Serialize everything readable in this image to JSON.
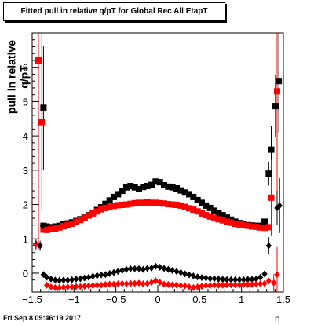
{
  "chart_data": {
    "type": "scatter",
    "title": "Fitted pull in relative q/pT for Global Rec All EtapT",
    "xlabel": "η",
    "ylabel": "pull in relative q/pT",
    "xlim": [
      -1.5,
      1.5
    ],
    "ylim": [
      -0.55,
      7.0
    ],
    "x_ticks": [
      -1.5,
      -1,
      -0.5,
      0,
      0.5,
      1,
      1.5
    ],
    "x_tick_labels": [
      "−1.5",
      "−1",
      "−0.5",
      "0",
      "0.5",
      "1",
      "1.5"
    ],
    "y_ticks": [
      0,
      1,
      2,
      3,
      4,
      5,
      6
    ],
    "y_tick_labels": [
      "0",
      "1",
      "2",
      "3",
      "4",
      "5",
      "6"
    ],
    "grid": false,
    "legend": false,
    "series": [
      {
        "marker": "square",
        "color": "#000000",
        "points": [
          [
            -1.365,
            4.82
          ],
          [
            -1.365,
            1.38
          ],
          [
            -1.325,
            1.36
          ],
          [
            -1.275,
            1.34
          ],
          [
            -1.225,
            1.36
          ],
          [
            -1.175,
            1.38
          ],
          [
            -1.125,
            1.42
          ],
          [
            -1.075,
            1.45
          ],
          [
            -1.025,
            1.48
          ],
          [
            -0.975,
            1.52
          ],
          [
            -0.925,
            1.57
          ],
          [
            -0.875,
            1.62
          ],
          [
            -0.825,
            1.69
          ],
          [
            -0.775,
            1.76
          ],
          [
            -0.725,
            1.84
          ],
          [
            -0.675,
            1.92
          ],
          [
            -0.625,
            2.02
          ],
          [
            -0.575,
            2.12
          ],
          [
            -0.525,
            2.22
          ],
          [
            -0.475,
            2.3
          ],
          [
            -0.425,
            2.4
          ],
          [
            -0.375,
            2.5
          ],
          [
            -0.325,
            2.54
          ],
          [
            -0.275,
            2.5
          ],
          [
            -0.225,
            2.45
          ],
          [
            -0.175,
            2.51
          ],
          [
            -0.125,
            2.54
          ],
          [
            -0.075,
            2.57
          ],
          [
            -0.025,
            2.67
          ],
          [
            0.025,
            2.65
          ],
          [
            0.075,
            2.56
          ],
          [
            0.125,
            2.52
          ],
          [
            0.175,
            2.5
          ],
          [
            0.225,
            2.47
          ],
          [
            0.275,
            2.41
          ],
          [
            0.325,
            2.35
          ],
          [
            0.375,
            2.3
          ],
          [
            0.425,
            2.22
          ],
          [
            0.475,
            2.13
          ],
          [
            0.525,
            2.05
          ],
          [
            0.575,
            1.97
          ],
          [
            0.625,
            1.9
          ],
          [
            0.675,
            1.82
          ],
          [
            0.725,
            1.75
          ],
          [
            0.775,
            1.69
          ],
          [
            0.825,
            1.62
          ],
          [
            0.875,
            1.56
          ],
          [
            0.925,
            1.5
          ],
          [
            0.975,
            1.46
          ],
          [
            1.025,
            1.43
          ],
          [
            1.075,
            1.4
          ],
          [
            1.125,
            1.39
          ],
          [
            1.175,
            1.38
          ],
          [
            1.225,
            1.38
          ],
          [
            1.275,
            1.5
          ],
          [
            1.325,
            2.9
          ],
          [
            1.355,
            3.6
          ],
          [
            1.405,
            4.87
          ],
          [
            1.445,
            5.6
          ]
        ],
        "errors": [
          [
            -1.365,
            1.8
          ],
          [
            1.325,
            0.35
          ],
          [
            1.355,
            0.7
          ],
          [
            1.405,
            0.9
          ],
          [
            1.445,
            1.5
          ]
        ]
      },
      {
        "marker": "square",
        "color": "#ff0000",
        "points": [
          [
            -1.425,
            6.2
          ],
          [
            -1.385,
            4.4
          ],
          [
            -1.365,
            1.27
          ],
          [
            -1.325,
            1.26
          ],
          [
            -1.275,
            1.28
          ],
          [
            -1.225,
            1.3
          ],
          [
            -1.175,
            1.33
          ],
          [
            -1.125,
            1.37
          ],
          [
            -1.075,
            1.4
          ],
          [
            -1.025,
            1.44
          ],
          [
            -0.975,
            1.5
          ],
          [
            -0.925,
            1.55
          ],
          [
            -0.875,
            1.61
          ],
          [
            -0.825,
            1.68
          ],
          [
            -0.775,
            1.74
          ],
          [
            -0.725,
            1.8
          ],
          [
            -0.675,
            1.86
          ],
          [
            -0.625,
            1.9
          ],
          [
            -0.575,
            1.93
          ],
          [
            -0.525,
            1.96
          ],
          [
            -0.475,
            1.98
          ],
          [
            -0.425,
            1.99
          ],
          [
            -0.375,
            2.0
          ],
          [
            -0.325,
            2.02
          ],
          [
            -0.275,
            2.04
          ],
          [
            -0.225,
            2.05
          ],
          [
            -0.175,
            2.05
          ],
          [
            -0.125,
            2.06
          ],
          [
            -0.075,
            2.05
          ],
          [
            -0.025,
            2.05
          ],
          [
            0.025,
            2.04
          ],
          [
            0.075,
            2.03
          ],
          [
            0.125,
            2.01
          ],
          [
            0.175,
            2.0
          ],
          [
            0.225,
            1.99
          ],
          [
            0.275,
            1.97
          ],
          [
            0.325,
            1.93
          ],
          [
            0.375,
            1.89
          ],
          [
            0.425,
            1.85
          ],
          [
            0.475,
            1.8
          ],
          [
            0.525,
            1.74
          ],
          [
            0.575,
            1.69
          ],
          [
            0.625,
            1.65
          ],
          [
            0.675,
            1.61
          ],
          [
            0.725,
            1.57
          ],
          [
            0.775,
            1.54
          ],
          [
            0.825,
            1.5
          ],
          [
            0.875,
            1.47
          ],
          [
            0.925,
            1.44
          ],
          [
            0.975,
            1.42
          ],
          [
            1.025,
            1.4
          ],
          [
            1.075,
            1.38
          ],
          [
            1.125,
            1.36
          ],
          [
            1.175,
            1.35
          ],
          [
            1.225,
            1.33
          ],
          [
            1.275,
            1.32
          ],
          [
            1.325,
            1.34
          ],
          [
            1.355,
            2.2
          ],
          [
            1.425,
            5.3
          ]
        ],
        "errors": [
          [
            -1.425,
            5.5
          ],
          [
            -1.385,
            2.6
          ],
          [
            1.355,
            1.1
          ],
          [
            1.425,
            3.5
          ]
        ]
      },
      {
        "marker": "diamond",
        "color": "#000000",
        "points": [
          [
            -1.455,
            0.85
          ],
          [
            -1.405,
            0.8
          ],
          [
            -1.375,
            1.38
          ],
          [
            -1.365,
            -0.04
          ],
          [
            -1.325,
            -0.12
          ],
          [
            -1.275,
            -0.17
          ],
          [
            -1.225,
            -0.2
          ],
          [
            -1.175,
            -0.21
          ],
          [
            -1.125,
            -0.2
          ],
          [
            -1.075,
            -0.2
          ],
          [
            -1.025,
            -0.19
          ],
          [
            -0.975,
            -0.17
          ],
          [
            -0.925,
            -0.16
          ],
          [
            -0.875,
            -0.14
          ],
          [
            -0.825,
            -0.12
          ],
          [
            -0.775,
            -0.09
          ],
          [
            -0.725,
            -0.07
          ],
          [
            -0.675,
            -0.05
          ],
          [
            -0.625,
            -0.04
          ],
          [
            -0.575,
            -0.01
          ],
          [
            -0.525,
            0.02
          ],
          [
            -0.475,
            0.05
          ],
          [
            -0.425,
            0.08
          ],
          [
            -0.375,
            0.11
          ],
          [
            -0.325,
            0.13
          ],
          [
            -0.275,
            0.13
          ],
          [
            -0.225,
            0.13
          ],
          [
            -0.175,
            0.11
          ],
          [
            -0.125,
            0.14
          ],
          [
            -0.075,
            0.15
          ],
          [
            -0.025,
            0.2
          ],
          [
            0.025,
            0.17
          ],
          [
            0.075,
            0.14
          ],
          [
            0.125,
            0.11
          ],
          [
            0.175,
            0.08
          ],
          [
            0.225,
            0.05
          ],
          [
            0.275,
            0.02
          ],
          [
            0.325,
            -0.02
          ],
          [
            0.375,
            -0.05
          ],
          [
            0.425,
            -0.08
          ],
          [
            0.475,
            -0.11
          ],
          [
            0.525,
            -0.13
          ],
          [
            0.575,
            -0.14
          ],
          [
            0.625,
            -0.16
          ],
          [
            0.675,
            -0.16
          ],
          [
            0.725,
            -0.17
          ],
          [
            0.775,
            -0.18
          ],
          [
            0.825,
            -0.19
          ],
          [
            0.875,
            -0.19
          ],
          [
            0.925,
            -0.19
          ],
          [
            0.975,
            -0.19
          ],
          [
            1.025,
            -0.19
          ],
          [
            1.075,
            -0.18
          ],
          [
            1.125,
            -0.18
          ],
          [
            1.175,
            -0.17
          ],
          [
            1.225,
            -0.12
          ],
          [
            1.275,
            -0.02
          ],
          [
            1.325,
            0.8
          ],
          [
            1.425,
            1.9
          ],
          [
            1.455,
            1.97
          ]
        ],
        "errors": [
          [
            -1.455,
            0.15
          ],
          [
            -1.405,
            0.15
          ],
          [
            1.325,
            0.25
          ],
          [
            1.425,
            0.5
          ],
          [
            1.455,
            0.8
          ]
        ]
      },
      {
        "marker": "diamond",
        "color": "#ff0000",
        "points": [
          [
            -1.455,
            0.82
          ],
          [
            -1.325,
            -0.35
          ],
          [
            -1.275,
            -0.4
          ],
          [
            -1.225,
            -0.42
          ],
          [
            -1.175,
            -0.42
          ],
          [
            -1.125,
            -0.41
          ],
          [
            -1.075,
            -0.4
          ],
          [
            -1.025,
            -0.4
          ],
          [
            -0.975,
            -0.39
          ],
          [
            -0.925,
            -0.39
          ],
          [
            -0.875,
            -0.38
          ],
          [
            -0.825,
            -0.37
          ],
          [
            -0.775,
            -0.36
          ],
          [
            -0.725,
            -0.35
          ],
          [
            -0.675,
            -0.35
          ],
          [
            -0.625,
            -0.33
          ],
          [
            -0.575,
            -0.32
          ],
          [
            -0.525,
            -0.32
          ],
          [
            -0.475,
            -0.31
          ],
          [
            -0.425,
            -0.3
          ],
          [
            -0.375,
            -0.31
          ],
          [
            -0.325,
            -0.3
          ],
          [
            -0.275,
            -0.3
          ],
          [
            -0.225,
            -0.29
          ],
          [
            -0.175,
            -0.31
          ],
          [
            -0.125,
            -0.3
          ],
          [
            -0.075,
            -0.27
          ],
          [
            -0.025,
            -0.22
          ],
          [
            0.025,
            -0.27
          ],
          [
            0.075,
            -0.32
          ],
          [
            0.125,
            -0.33
          ],
          [
            0.175,
            -0.34
          ],
          [
            0.225,
            -0.35
          ],
          [
            0.275,
            -0.36
          ],
          [
            0.325,
            -0.37
          ],
          [
            0.375,
            -0.4
          ],
          [
            0.425,
            -0.42
          ],
          [
            0.475,
            -0.4
          ],
          [
            0.525,
            -0.38
          ],
          [
            0.575,
            -0.36
          ],
          [
            0.625,
            -0.36
          ],
          [
            0.675,
            -0.35
          ],
          [
            0.725,
            -0.35
          ],
          [
            0.775,
            -0.35
          ],
          [
            0.825,
            -0.34
          ],
          [
            0.875,
            -0.34
          ],
          [
            0.925,
            -0.34
          ],
          [
            0.975,
            -0.34
          ],
          [
            1.025,
            -0.33
          ],
          [
            1.075,
            -0.33
          ],
          [
            1.125,
            -0.33
          ],
          [
            1.175,
            -0.32
          ],
          [
            1.225,
            -0.31
          ],
          [
            1.275,
            -0.3
          ],
          [
            1.325,
            -0.23
          ],
          [
            1.385,
            -0.28
          ],
          [
            1.425,
            -0.04
          ]
        ],
        "errors": [
          [
            -1.455,
            0.15
          ],
          [
            1.385,
            0.25
          ],
          [
            1.425,
            0.8
          ]
        ]
      }
    ]
  },
  "footer": {
    "timestamp": "Fri Sep  8 09:46:19 2017"
  }
}
